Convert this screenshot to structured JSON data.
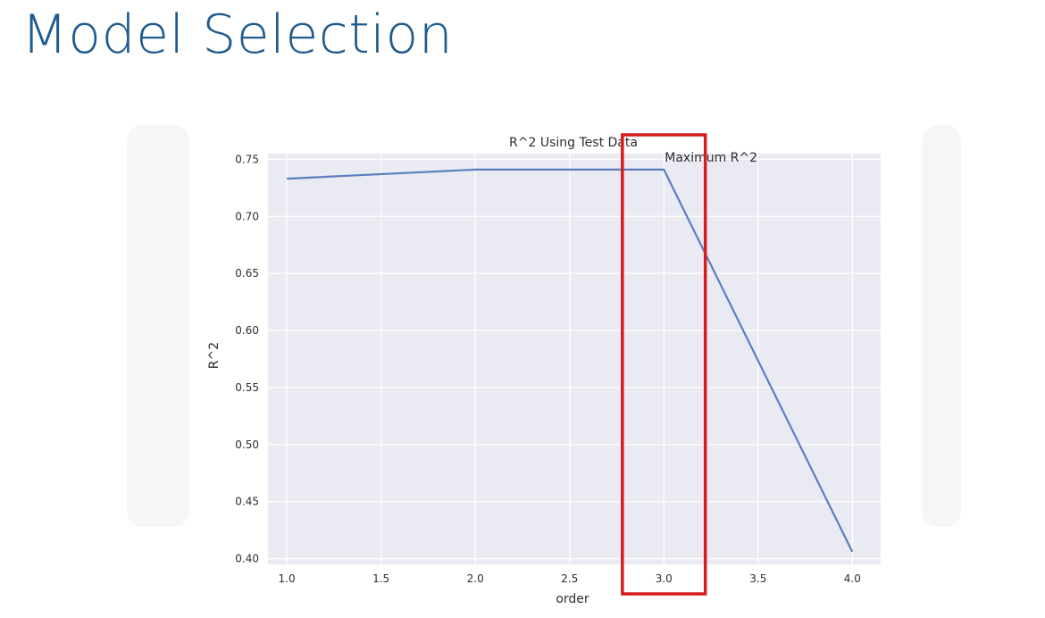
{
  "slide": {
    "title": "Model Selection"
  },
  "chart_data": {
    "type": "line",
    "title": "R^2 Using Test Data",
    "xlabel": "order",
    "ylabel": "R^2",
    "x": [
      1,
      2,
      3,
      4
    ],
    "series": [
      {
        "values": [
          0.733,
          0.741,
          0.741,
          0.406
        ]
      }
    ],
    "xlim": [
      0.9,
      4.15
    ],
    "ylim": [
      0.395,
      0.755
    ],
    "xticks": [
      1.0,
      1.5,
      2.0,
      2.5,
      3.0,
      3.5,
      4.0
    ],
    "xtick_labels": [
      "1.0",
      "1.5",
      "2.0",
      "2.5",
      "3.0",
      "3.5",
      "4.0"
    ],
    "yticks": [
      0.4,
      0.45,
      0.5,
      0.55,
      0.6,
      0.65,
      0.7,
      0.75
    ],
    "ytick_labels": [
      "0.40",
      "0.45",
      "0.50",
      "0.55",
      "0.60",
      "0.65",
      "0.70",
      "0.75"
    ],
    "grid": true,
    "annotation": {
      "text": "Maximum R^2",
      "x": 3.0,
      "highlight_x_range": [
        2.78,
        3.22
      ]
    },
    "colors": {
      "line": "#5b7fc0",
      "plot_background": "#eaeaf2",
      "grid": "#ffffff",
      "highlight": "#d61c1c"
    }
  }
}
